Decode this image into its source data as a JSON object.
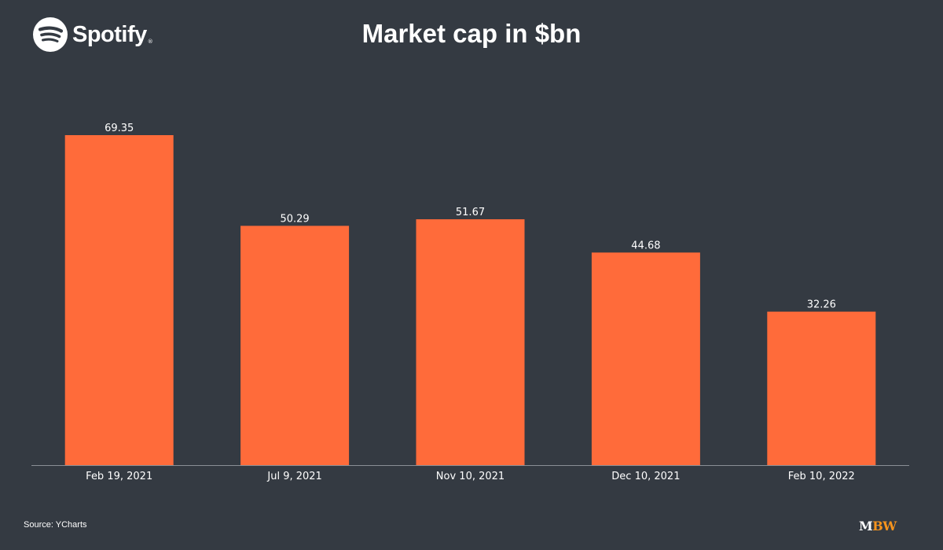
{
  "brand_logo": {
    "name": "Spotify",
    "icon": "spotify-icon",
    "color": "#ffffff"
  },
  "footer": {
    "source": "Source: YCharts",
    "publisher_mark_m": "M",
    "publisher_mark_bw": "BW",
    "publisher_colors": [
      "#ffffff",
      "#f7941d"
    ]
  },
  "colors": {
    "background": "#343a42",
    "bar": "#ff6b3a",
    "text": "#ffffff",
    "axis": "#8a8f96"
  },
  "chart_data": {
    "type": "bar",
    "title": "Market cap in $bn",
    "xlabel": "",
    "ylabel": "",
    "categories": [
      "Feb 19, 2021",
      "Jul 9, 2021",
      "Nov 10, 2021",
      "Dec 10, 2021",
      "Feb 10, 2022"
    ],
    "values": [
      69.35,
      50.29,
      51.67,
      44.68,
      32.26
    ],
    "value_labels": [
      "69.35",
      "50.29",
      "51.67",
      "44.68",
      "32.26"
    ],
    "ylim": [
      0,
      69.35
    ],
    "grid": false,
    "legend": "none",
    "data_labels": true
  }
}
